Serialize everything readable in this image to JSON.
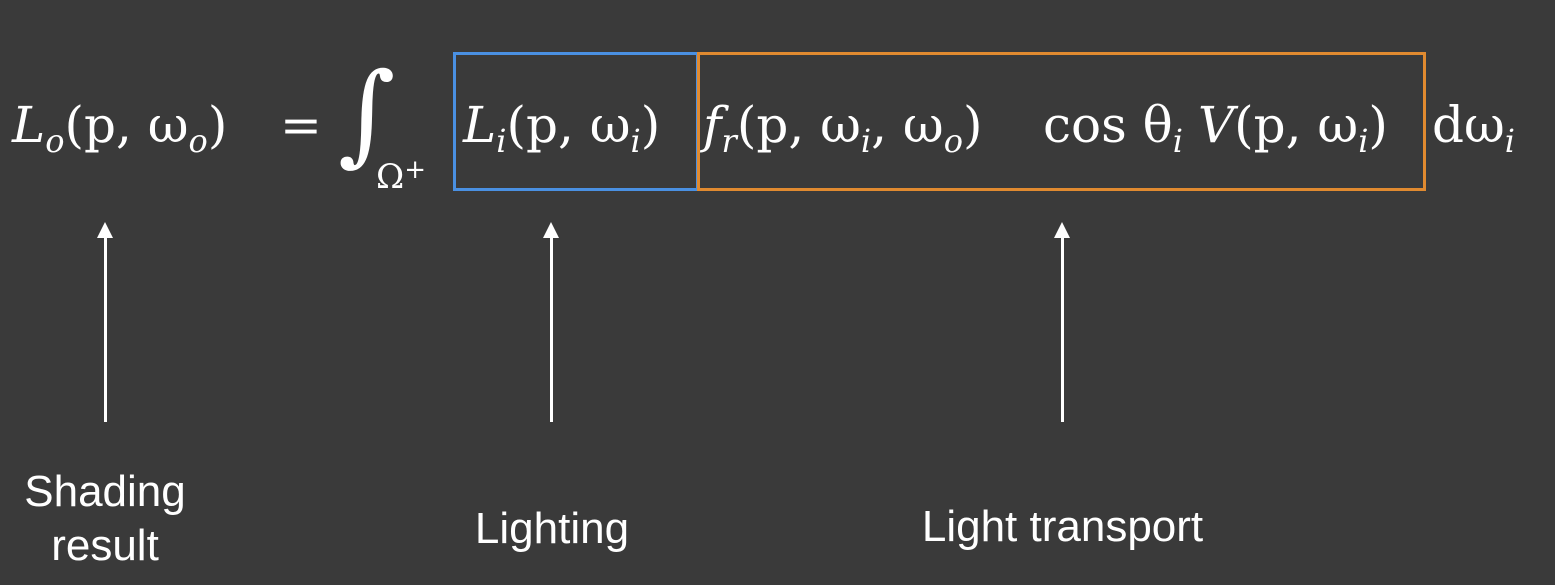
{
  "equation": {
    "lhs_symbol": "L",
    "lhs_sub": "o",
    "lhs_args": "(p, ω",
    "lhs_args_sub": "o",
    "lhs_close": ")",
    "equals": "=",
    "integral_sign": "∫",
    "domain_symbol": "Ω",
    "domain_sup": "+",
    "lighting_symbol": "L",
    "lighting_sub": "i",
    "lighting_args": "(p, ω",
    "lighting_args_sub": "i",
    "lighting_close": ")",
    "brdf_symbol": "f",
    "brdf_sub": "r",
    "brdf_args": "(p, ω",
    "brdf_args_sub1": "i",
    "brdf_args_mid": ", ω",
    "brdf_args_sub2": "o",
    "brdf_close": ")",
    "cos_text": "cos θ",
    "cos_sub": "i",
    "visibility_symbol": "V",
    "visibility_args": "(p, ω",
    "visibility_args_sub": "i",
    "visibility_close": ")",
    "differential": "dω",
    "differential_sub": "i"
  },
  "labels": {
    "shading_line1": "Shading",
    "shading_line2": "result",
    "lighting": "Lighting",
    "transport": "Light transport"
  },
  "colors": {
    "background": "#3a3a3a",
    "lighting_box": "#4a90e2",
    "transport_box": "#e08a30",
    "foreground": "#ffffff"
  }
}
